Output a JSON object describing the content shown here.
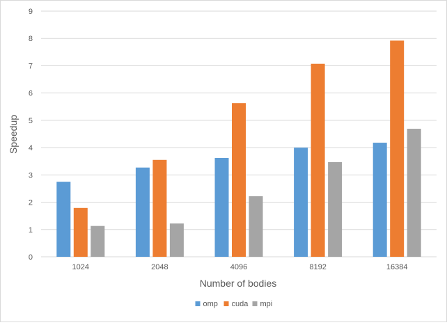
{
  "chart_data": {
    "type": "bar",
    "title": "",
    "xlabel": "Number of bodies",
    "ylabel": "Speedup",
    "categories": [
      "1024",
      "2048",
      "4096",
      "8192",
      "16384"
    ],
    "series": [
      {
        "name": "omp",
        "color": "#5B9BD5",
        "values": [
          2.75,
          3.27,
          3.62,
          4.0,
          4.18
        ]
      },
      {
        "name": "cuda",
        "color": "#ED7D31",
        "values": [
          1.79,
          3.55,
          5.63,
          7.07,
          7.92
        ]
      },
      {
        "name": "mpi",
        "color": "#A5A5A5",
        "values": [
          1.13,
          1.22,
          2.22,
          3.47,
          4.69
        ]
      }
    ],
    "ylim": [
      0,
      9
    ],
    "yticks": [
      0,
      1,
      2,
      3,
      4,
      5,
      6,
      7,
      8,
      9
    ],
    "grid": true,
    "legend_position": "bottom"
  }
}
